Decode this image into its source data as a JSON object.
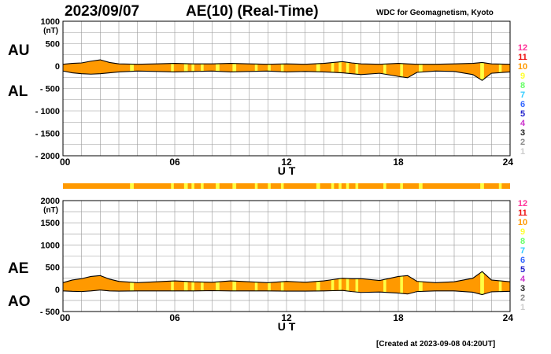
{
  "header": {
    "date": "2023/09/07",
    "title": "AE(10) (Real-Time)",
    "credit": "WDC for Geomagnetism, Kyoto"
  },
  "footer": {
    "created": "[Created at 2023-09-08 04:20UT]"
  },
  "legend_numbers": [
    {
      "label": "12",
      "color": "#ff3399"
    },
    {
      "label": "11",
      "color": "#ee1111"
    },
    {
      "label": "10",
      "color": "#ff9900"
    },
    {
      "label": "9",
      "color": "#ffff33"
    },
    {
      "label": "8",
      "color": "#66ff66"
    },
    {
      "label": "7",
      "color": "#33ccff"
    },
    {
      "label": "6",
      "color": "#3366ff"
    },
    {
      "label": "5",
      "color": "#2222cc"
    },
    {
      "label": "4",
      "color": "#cc33cc"
    },
    {
      "label": "3",
      "color": "#222222"
    },
    {
      "label": "2",
      "color": "#888888"
    },
    {
      "label": "1",
      "color": "#cccccc"
    }
  ],
  "colors": {
    "fill": "#ff9900",
    "highlight": "#ffff44",
    "grid": "#999999",
    "line": "#000000"
  },
  "chart_data": [
    {
      "type": "area",
      "labels": [
        "AU",
        "AL"
      ],
      "ylabel": "(nT)",
      "xlabel": "U T",
      "xlim": [
        0,
        24
      ],
      "ylim": [
        -2000,
        1000
      ],
      "x_ticks": [
        "00",
        "06",
        "12",
        "18",
        "24"
      ],
      "y_ticks": [
        "1000",
        "500",
        "0",
        "- 500",
        "- 1000",
        "- 1500",
        "- 2000"
      ],
      "y_tick_values": [
        1000,
        500,
        0,
        -500,
        -1000,
        -1500,
        -2000
      ],
      "series": [
        {
          "name": "AU",
          "x": [
            0,
            0.5,
            1,
            1.5,
            2,
            2.5,
            3,
            4,
            5,
            6,
            7,
            8,
            9,
            10,
            11,
            12,
            13,
            14,
            14.5,
            15,
            15.5,
            16,
            17,
            18,
            18.5,
            19,
            20,
            21,
            22,
            22.5,
            23,
            24
          ],
          "values": [
            40,
            60,
            70,
            110,
            140,
            80,
            50,
            40,
            50,
            60,
            50,
            50,
            60,
            50,
            40,
            50,
            40,
            60,
            80,
            100,
            70,
            50,
            40,
            60,
            50,
            40,
            40,
            50,
            60,
            80,
            50,
            40
          ]
        },
        {
          "name": "AL",
          "x": [
            0,
            0.5,
            1,
            1.5,
            2,
            2.5,
            3,
            4,
            5,
            6,
            7,
            8,
            9,
            10,
            11,
            12,
            13,
            14,
            14.5,
            15,
            15.5,
            16,
            17,
            18,
            18.5,
            19,
            20,
            21,
            22,
            22.5,
            23,
            24
          ],
          "values": [
            -110,
            -150,
            -170,
            -180,
            -170,
            -150,
            -130,
            -110,
            -120,
            -130,
            -120,
            -110,
            -130,
            -120,
            -110,
            -130,
            -120,
            -130,
            -140,
            -150,
            -170,
            -190,
            -160,
            -230,
            -260,
            -140,
            -110,
            -120,
            -190,
            -320,
            -160,
            -130
          ]
        }
      ]
    },
    {
      "type": "area",
      "labels": [
        "AE",
        "AO"
      ],
      "ylabel": "(nT)",
      "xlabel": "U T",
      "xlim": [
        0,
        24
      ],
      "ylim": [
        -500,
        2000
      ],
      "x_ticks": [
        "00",
        "06",
        "12",
        "18",
        "24"
      ],
      "y_ticks": [
        "2000",
        "1500",
        "1000",
        "500",
        "0",
        "- 500"
      ],
      "y_tick_values": [
        2000,
        1500,
        1000,
        500,
        0,
        -500
      ],
      "series": [
        {
          "name": "AE",
          "x": [
            0,
            0.5,
            1,
            1.5,
            2,
            2.5,
            3,
            4,
            5,
            6,
            7,
            8,
            9,
            10,
            11,
            12,
            13,
            14,
            14.5,
            15,
            15.5,
            16,
            17,
            18,
            18.5,
            19,
            20,
            21,
            22,
            22.5,
            23,
            24
          ],
          "values": [
            150,
            210,
            240,
            290,
            310,
            230,
            180,
            150,
            170,
            190,
            170,
            160,
            190,
            170,
            150,
            180,
            160,
            190,
            220,
            250,
            240,
            240,
            200,
            290,
            310,
            180,
            150,
            170,
            250,
            400,
            210,
            170
          ]
        },
        {
          "name": "AO",
          "x": [
            0,
            0.5,
            1,
            1.5,
            2,
            2.5,
            3,
            4,
            5,
            6,
            7,
            8,
            9,
            10,
            11,
            12,
            13,
            14,
            14.5,
            15,
            15.5,
            16,
            17,
            18,
            18.5,
            19,
            20,
            21,
            22,
            22.5,
            23,
            24
          ],
          "values": [
            -35,
            -45,
            -50,
            -35,
            -15,
            -35,
            -40,
            -35,
            -35,
            -35,
            -35,
            -30,
            -35,
            -35,
            -35,
            -40,
            -40,
            -35,
            -30,
            -25,
            -50,
            -70,
            -60,
            -85,
            -105,
            -50,
            -35,
            -35,
            -65,
            -120,
            -55,
            -45
          ]
        }
      ]
    }
  ],
  "highlight_bands_hours": [
    [
      3.6,
      3.8
    ],
    [
      5.8,
      5.95
    ],
    [
      6.5,
      6.7
    ],
    [
      6.9,
      7.05
    ],
    [
      7.4,
      7.55
    ],
    [
      8.2,
      8.4
    ],
    [
      9.1,
      9.3
    ],
    [
      10.3,
      10.45
    ],
    [
      11.0,
      11.15
    ],
    [
      11.7,
      11.85
    ],
    [
      13.6,
      13.8
    ],
    [
      14.4,
      14.55
    ],
    [
      14.8,
      14.95
    ],
    [
      15.2,
      15.35
    ],
    [
      15.7,
      15.85
    ],
    [
      17.2,
      17.35
    ],
    [
      18.1,
      18.25
    ],
    [
      19.1,
      19.3
    ],
    [
      22.4,
      22.6
    ],
    [
      23.4,
      23.55
    ]
  ]
}
